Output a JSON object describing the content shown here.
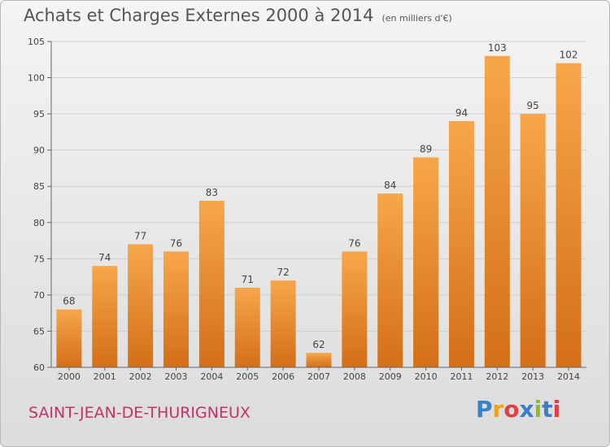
{
  "title": "Achats et Charges Externes 2000 à 2014",
  "subtitle": "(en milliers d'€)",
  "place": "SAINT-JEAN-DE-THURIGNEUX",
  "logo": {
    "letters": [
      "P",
      "r",
      "o",
      "x",
      "i",
      "t",
      "i"
    ],
    "colors": [
      "#3a7fc8",
      "#f0a020",
      "#e04040",
      "#3a7fc8",
      "#8abf2a",
      "#3a7fc8",
      "#e04040"
    ]
  },
  "colors": {
    "bar": "#f0922e",
    "bar_dark": "#d2701a",
    "grid": "#cfcfcf",
    "axis": "#666666",
    "place": "#c2336a"
  },
  "chart_data": {
    "type": "bar",
    "categories": [
      "2000",
      "2001",
      "2002",
      "2003",
      "2004",
      "2005",
      "2006",
      "2007",
      "2008",
      "2009",
      "2010",
      "2011",
      "2012",
      "2013",
      "2014"
    ],
    "values": [
      68,
      74,
      77,
      76,
      83,
      71,
      72,
      62,
      76,
      84,
      89,
      94,
      103,
      95,
      102
    ],
    "ylim": [
      60,
      105
    ],
    "yticks": [
      60,
      65,
      70,
      75,
      80,
      85,
      90,
      95,
      100,
      105
    ],
    "grid": true
  }
}
